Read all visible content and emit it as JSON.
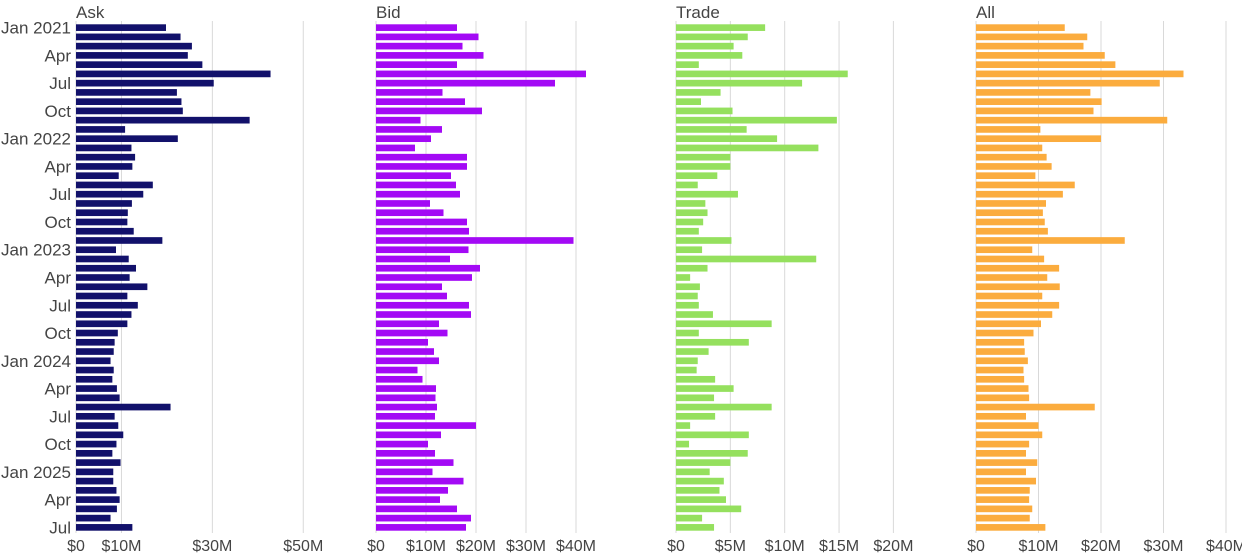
{
  "chart_data": {
    "type": "bar",
    "orientation": "horizontal",
    "grid": true,
    "y_tick_labels": [
      "Jan 2021",
      "Apr",
      "Jul",
      "Oct",
      "Jan 2022",
      "Apr",
      "Jul",
      "Oct",
      "Jan 2023",
      "Apr",
      "Jul",
      "Oct",
      "Jan 2024",
      "Apr",
      "Jul",
      "Oct",
      "Jan 2025",
      "Apr",
      "Jul"
    ],
    "categories": [
      "2021-01",
      "2021-02",
      "2021-03",
      "2021-04",
      "2021-05",
      "2021-06",
      "2021-07",
      "2021-08",
      "2021-09",
      "2021-10",
      "2021-11",
      "2021-12",
      "2022-01",
      "2022-02",
      "2022-03",
      "2022-04",
      "2022-05",
      "2022-06",
      "2022-07",
      "2022-08",
      "2022-09",
      "2022-10",
      "2022-11",
      "2022-12",
      "2023-01",
      "2023-02",
      "2023-03",
      "2023-04",
      "2023-05",
      "2023-06",
      "2023-07",
      "2023-08",
      "2023-09",
      "2023-10",
      "2023-11",
      "2023-12",
      "2024-01",
      "2024-02",
      "2024-03",
      "2024-04",
      "2024-05",
      "2024-06",
      "2024-07",
      "2024-08",
      "2024-09",
      "2024-10",
      "2024-11",
      "2024-12",
      "2025-01",
      "2025-02",
      "2025-03",
      "2025-04",
      "2025-05",
      "2025-06",
      "2025-07"
    ],
    "panels": [
      {
        "title": "Ask",
        "color": "#12116b",
        "xlim": [
          0,
          55
        ],
        "x_tick_labels": [
          "$0",
          "$10M",
          "$30M",
          "$50M"
        ],
        "x_tick_values": [
          0,
          10,
          30,
          50
        ],
        "values": [
          19.8,
          23.0,
          25.5,
          24.6,
          27.8,
          42.8,
          30.3,
          22.2,
          23.2,
          23.5,
          38.2,
          10.8,
          22.4,
          12.2,
          13.0,
          12.4,
          9.4,
          16.9,
          14.8,
          12.3,
          11.4,
          11.3,
          12.7,
          19.0,
          8.8,
          11.6,
          13.2,
          11.8,
          15.7,
          11.3,
          13.6,
          12.2,
          11.3,
          9.2,
          8.5,
          8.3,
          7.6,
          8.3,
          8.0,
          9.0,
          9.6,
          20.8,
          8.5,
          9.3,
          10.4,
          8.9,
          8.0,
          9.8,
          8.2,
          8.2,
          8.9,
          9.6,
          9.0,
          7.6,
          12.4
        ]
      },
      {
        "title": "Bid",
        "color": "#a30af5",
        "xlim": [
          0,
          50
        ],
        "x_tick_labels": [
          "$0",
          "$10M",
          "$20M",
          "$30M",
          "$40M"
        ],
        "x_tick_values": [
          0,
          10,
          20,
          30,
          40
        ],
        "values": [
          16.2,
          20.5,
          17.3,
          21.5,
          16.2,
          42.0,
          35.8,
          13.3,
          17.8,
          21.2,
          8.9,
          13.2,
          11.0,
          7.8,
          18.2,
          18.2,
          15.0,
          16.0,
          16.8,
          10.8,
          13.5,
          18.2,
          18.6,
          39.5,
          18.5,
          14.8,
          20.8,
          19.2,
          13.2,
          14.2,
          18.6,
          19.0,
          12.6,
          14.3,
          10.4,
          11.6,
          12.6,
          8.3,
          9.3,
          12.0,
          11.9,
          12.2,
          11.8,
          20.0,
          13.0,
          10.4,
          11.8,
          15.5,
          11.3,
          17.5,
          14.4,
          12.8,
          16.2,
          19.0,
          18.0
        ]
      },
      {
        "title": "Trade",
        "color": "#95e05e",
        "xlim": [
          0,
          23
        ],
        "x_tick_labels": [
          "$0",
          "$5M",
          "$10M",
          "$15M",
          "$20M"
        ],
        "x_tick_values": [
          0,
          5,
          10,
          15,
          20
        ],
        "values": [
          8.2,
          6.6,
          5.3,
          6.1,
          2.1,
          15.8,
          11.6,
          4.1,
          2.3,
          5.2,
          14.8,
          6.5,
          9.3,
          13.1,
          5.0,
          5.0,
          3.8,
          2.0,
          5.7,
          2.7,
          2.9,
          2.5,
          2.1,
          5.1,
          2.4,
          12.9,
          2.9,
          1.3,
          2.2,
          2.0,
          2.1,
          3.4,
          8.8,
          2.1,
          6.7,
          3.0,
          2.0,
          1.9,
          3.6,
          5.3,
          3.5,
          8.8,
          3.6,
          1.3,
          6.7,
          1.2,
          6.6,
          5.0,
          3.1,
          4.4,
          4.0,
          4.6,
          6.0,
          2.4,
          3.5
        ]
      },
      {
        "title": "All",
        "color": "#fbac3e",
        "xlim": [
          0,
          40
        ],
        "x_tick_labels": [
          "$0",
          "$10M",
          "$20M",
          "$30M",
          "$40M"
        ],
        "x_tick_values": [
          0,
          10,
          20,
          30,
          40
        ],
        "values": [
          14.2,
          17.8,
          17.2,
          20.6,
          22.3,
          33.2,
          29.4,
          18.3,
          20.1,
          18.8,
          30.6,
          10.3,
          20.0,
          10.6,
          11.3,
          12.1,
          9.5,
          15.8,
          13.9,
          11.2,
          10.7,
          11.0,
          11.5,
          23.8,
          9.0,
          10.9,
          13.3,
          11.4,
          13.4,
          10.6,
          13.3,
          12.2,
          10.4,
          9.2,
          7.7,
          7.8,
          8.3,
          7.6,
          7.7,
          8.4,
          8.5,
          19.0,
          8.0,
          10.0,
          10.6,
          8.5,
          8.0,
          9.8,
          8.0,
          9.6,
          8.6,
          8.5,
          9.0,
          8.6,
          11.1
        ]
      }
    ]
  }
}
